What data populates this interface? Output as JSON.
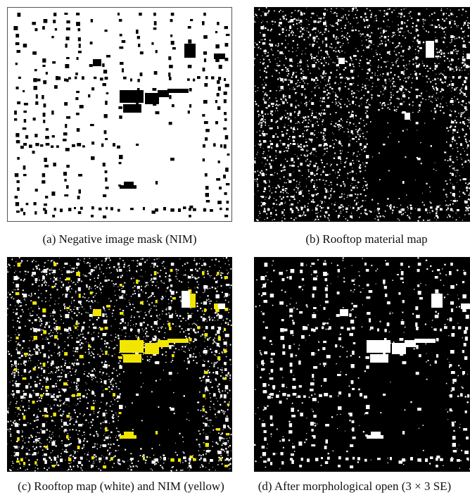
{
  "figure": {
    "panels": [
      {
        "id": "a",
        "caption": "(a) Negative image mask (NIM)",
        "background": "#ffffff",
        "mark_color": "#000000",
        "frame": true
      },
      {
        "id": "b",
        "caption": "(b) Rooftop material map",
        "background": "#000000",
        "mark_color": "#ffffff",
        "frame": false
      },
      {
        "id": "c",
        "caption": "(c) Rooftop map (white) and NIM (yellow)",
        "background": "#000000",
        "mark_color": "#ffffff",
        "overlay_color": "#f2e600",
        "frame": false
      },
      {
        "id": "d",
        "caption": "(d) After morphological open (3 × 3 SE)",
        "background": "#000000",
        "mark_color": "#ffffff",
        "frame": false
      }
    ]
  }
}
